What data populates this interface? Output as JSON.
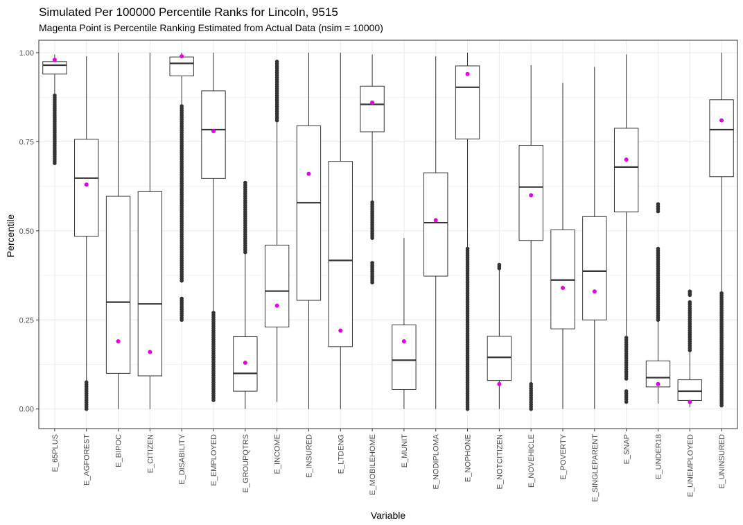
{
  "chart_data": {
    "type": "boxplot",
    "title": "Simulated Per 100000 Percentile Ranks for Lincoln, 9515",
    "subtitle": "Magenta Point is Percentile Ranking Estimated from Actual Data (nsim = 10000)",
    "xlabel": "Variable",
    "ylabel": "Percentile",
    "ylim": [
      -0.055,
      1.035
    ],
    "yticks": [
      0.0,
      0.25,
      0.5,
      0.75,
      1.0
    ],
    "ytick_labels": [
      "0.00",
      "0.25",
      "0.50",
      "0.75",
      "1.00"
    ],
    "grid": true,
    "colors": {
      "box": "#333333",
      "outlier": "#333333",
      "actual": "#e600e6",
      "grid": "#ebebeb"
    },
    "categories": [
      "E_65PLUS",
      "E_AGFOREST",
      "E_BIPOC",
      "E_CITIZEN",
      "E_DISABILITY",
      "E_EMPLOYED",
      "E_GROUPQTRS",
      "E_INCOME",
      "E_INSURED",
      "E_LTDENG",
      "E_MOBILEHOME",
      "E_MUNIT",
      "E_NODIPLOMA",
      "E_NOPHONE",
      "E_NOTCITIZEN",
      "E_NOVEHICLE",
      "E_POVERTY",
      "E_SINGLEPARENT",
      "E_SNAP",
      "E_UNDER18",
      "E_UNEMPLOYED",
      "E_UNINSURED"
    ],
    "boxes": [
      {
        "name": "E_65PLUS",
        "wlo": 0.88,
        "q1": 0.94,
        "med": 0.965,
        "q3": 0.975,
        "whi": 0.995,
        "outliers": [
          [
            0.69,
            0.88
          ]
        ],
        "actual": 0.98
      },
      {
        "name": "E_AGFOREST",
        "wlo": 0.08,
        "q1": 0.485,
        "med": 0.648,
        "q3": 0.757,
        "whi": 0.99,
        "outliers": [
          [
            0.0,
            0.075
          ]
        ],
        "actual": 0.63
      },
      {
        "name": "E_BIPOC",
        "wlo": 0.0,
        "q1": 0.1,
        "med": 0.3,
        "q3": 0.597,
        "whi": 1.0,
        "outliers": [],
        "actual": 0.19
      },
      {
        "name": "E_CITIZEN",
        "wlo": 0.0,
        "q1": 0.093,
        "med": 0.295,
        "q3": 0.61,
        "whi": 1.0,
        "outliers": [],
        "actual": 0.16
      },
      {
        "name": "E_DISABILITY",
        "wlo": 0.85,
        "q1": 0.935,
        "med": 0.97,
        "q3": 0.988,
        "whi": 1.0,
        "outliers": [
          [
            0.36,
            0.85
          ],
          [
            0.25,
            0.31
          ]
        ],
        "actual": 0.99
      },
      {
        "name": "E_EMPLOYED",
        "wlo": 0.27,
        "q1": 0.647,
        "med": 0.784,
        "q3": 0.893,
        "whi": 1.0,
        "outliers": [
          [
            0.025,
            0.27
          ]
        ],
        "actual": 0.78
      },
      {
        "name": "E_GROUPQTRS",
        "wlo": 0.0,
        "q1": 0.05,
        "med": 0.1,
        "q3": 0.203,
        "whi": 0.44,
        "outliers": [
          [
            0.44,
            0.635
          ]
        ],
        "actual": 0.13
      },
      {
        "name": "E_INCOME",
        "wlo": 0.02,
        "q1": 0.23,
        "med": 0.331,
        "q3": 0.46,
        "whi": 0.81,
        "outliers": [
          [
            0.81,
            0.975
          ]
        ],
        "actual": 0.29
      },
      {
        "name": "E_INSURED",
        "wlo": 0.0,
        "q1": 0.305,
        "med": 0.579,
        "q3": 0.795,
        "whi": 1.0,
        "outliers": [],
        "actual": 0.66
      },
      {
        "name": "E_LTDENG",
        "wlo": 0.0,
        "q1": 0.175,
        "med": 0.417,
        "q3": 0.695,
        "whi": 1.0,
        "outliers": [],
        "actual": 0.22
      },
      {
        "name": "E_MOBILEHOME",
        "wlo": 0.58,
        "q1": 0.778,
        "med": 0.855,
        "q3": 0.906,
        "whi": 0.995,
        "outliers": [
          [
            0.48,
            0.58
          ],
          [
            0.355,
            0.41
          ]
        ],
        "actual": 0.86
      },
      {
        "name": "E_MUNIT",
        "wlo": 0.0,
        "q1": 0.055,
        "med": 0.137,
        "q3": 0.236,
        "whi": 0.48,
        "outliers": [],
        "actual": 0.19
      },
      {
        "name": "E_NODIPLOMA",
        "wlo": 0.0,
        "q1": 0.373,
        "med": 0.523,
        "q3": 0.663,
        "whi": 0.99,
        "outliers": [],
        "actual": 0.53
      },
      {
        "name": "E_NOPHONE",
        "wlo": 0.45,
        "q1": 0.758,
        "med": 0.903,
        "q3": 0.963,
        "whi": 1.0,
        "outliers": [
          [
            0.0,
            0.45
          ]
        ],
        "actual": 0.94
      },
      {
        "name": "E_NOTCITIZEN",
        "wlo": 0.0,
        "q1": 0.08,
        "med": 0.145,
        "q3": 0.204,
        "whi": 0.39,
        "outliers": [
          [
            0.395,
            0.405
          ]
        ],
        "actual": 0.07
      },
      {
        "name": "E_NOVEHICLE",
        "wlo": 0.07,
        "q1": 0.473,
        "med": 0.623,
        "q3": 0.74,
        "whi": 0.965,
        "outliers": [
          [
            0.0,
            0.07
          ]
        ],
        "actual": 0.6
      },
      {
        "name": "E_POVERTY",
        "wlo": 0.0,
        "q1": 0.225,
        "med": 0.362,
        "q3": 0.503,
        "whi": 0.915,
        "outliers": [],
        "actual": 0.34
      },
      {
        "name": "E_SINGLEPARENT",
        "wlo": 0.0,
        "q1": 0.25,
        "med": 0.387,
        "q3": 0.54,
        "whi": 0.96,
        "outliers": [],
        "actual": 0.33
      },
      {
        "name": "E_SNAP",
        "wlo": 0.2,
        "q1": 0.553,
        "med": 0.679,
        "q3": 0.788,
        "whi": 0.995,
        "outliers": [
          [
            0.085,
            0.2
          ],
          [
            0.02,
            0.05
          ]
        ],
        "actual": 0.7
      },
      {
        "name": "E_UNDER18",
        "wlo": 0.015,
        "q1": 0.062,
        "med": 0.088,
        "q3": 0.135,
        "whi": 0.25,
        "outliers": [
          [
            0.25,
            0.45
          ],
          [
            0.555,
            0.575
          ]
        ],
        "actual": 0.07
      },
      {
        "name": "E_UNEMPLOYED",
        "wlo": 0.005,
        "q1": 0.024,
        "med": 0.05,
        "q3": 0.082,
        "whi": 0.165,
        "outliers": [
          [
            0.165,
            0.3
          ],
          [
            0.32,
            0.33
          ]
        ],
        "actual": 0.02
      },
      {
        "name": "E_UNINSURED",
        "wlo": 0.33,
        "q1": 0.652,
        "med": 0.784,
        "q3": 0.868,
        "whi": 1.0,
        "outliers": [
          [
            0.01,
            0.325
          ]
        ],
        "actual": 0.81
      }
    ]
  }
}
